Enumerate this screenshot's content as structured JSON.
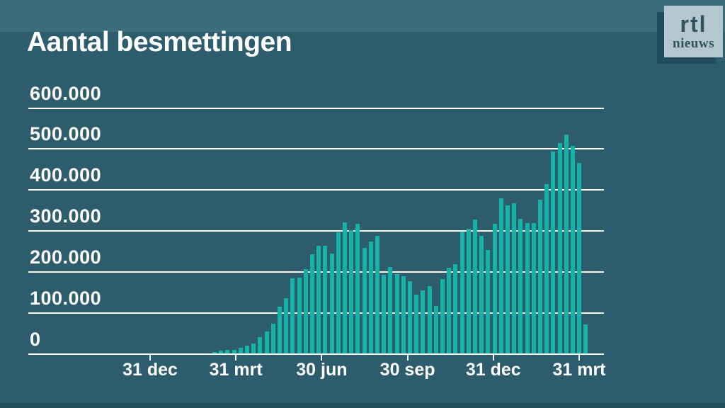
{
  "header": {
    "title": "Aantal besmettingen"
  },
  "logo": {
    "line1": "rtl",
    "line2": "nieuws"
  },
  "colors": {
    "background": "#2d5d6c",
    "top_band": "#3c6d7b",
    "bottom_band": "#24505d",
    "bar": "#15b3a7",
    "gridline": "#ffffff",
    "text": "#ffffff",
    "logo_bg": "#b4c7cf",
    "logo_text": "#31525f",
    "logo_shadow": "#204d5b"
  },
  "chart_data": {
    "type": "bar",
    "title": "Aantal besmettingen",
    "xlabel": "",
    "ylabel": "",
    "ylim": [
      0,
      600000
    ],
    "grid": true,
    "legend": "none",
    "y_ticks": [
      {
        "label": "600.000",
        "value": 600000
      },
      {
        "label": "500.000",
        "value": 500000
      },
      {
        "label": "400.000",
        "value": 400000
      },
      {
        "label": "300.000",
        "value": 300000
      },
      {
        "label": "200.000",
        "value": 200000
      },
      {
        "label": "100.000",
        "value": 100000
      },
      {
        "label": "0",
        "value": 0
      }
    ],
    "x_ticks": [
      "31 dec",
      "31 mrt",
      "30 jun",
      "30 sep",
      "31 dec",
      "31 mrt"
    ],
    "values": [
      6000,
      9000,
      10000,
      10000,
      15000,
      20000,
      26000,
      41000,
      55000,
      74000,
      116000,
      137000,
      185000,
      186000,
      208000,
      243000,
      264000,
      264000,
      245000,
      297000,
      322000,
      303000,
      318000,
      259000,
      275000,
      288000,
      193000,
      212000,
      195000,
      190000,
      177000,
      145000,
      155000,
      166000,
      118000,
      183000,
      210000,
      219000,
      298000,
      305000,
      328000,
      288000,
      253000,
      317000,
      380000,
      362000,
      368000,
      329000,
      319000,
      320000,
      376000,
      415000,
      493000,
      514000,
      536000,
      507000,
      466000,
      73000
    ]
  }
}
